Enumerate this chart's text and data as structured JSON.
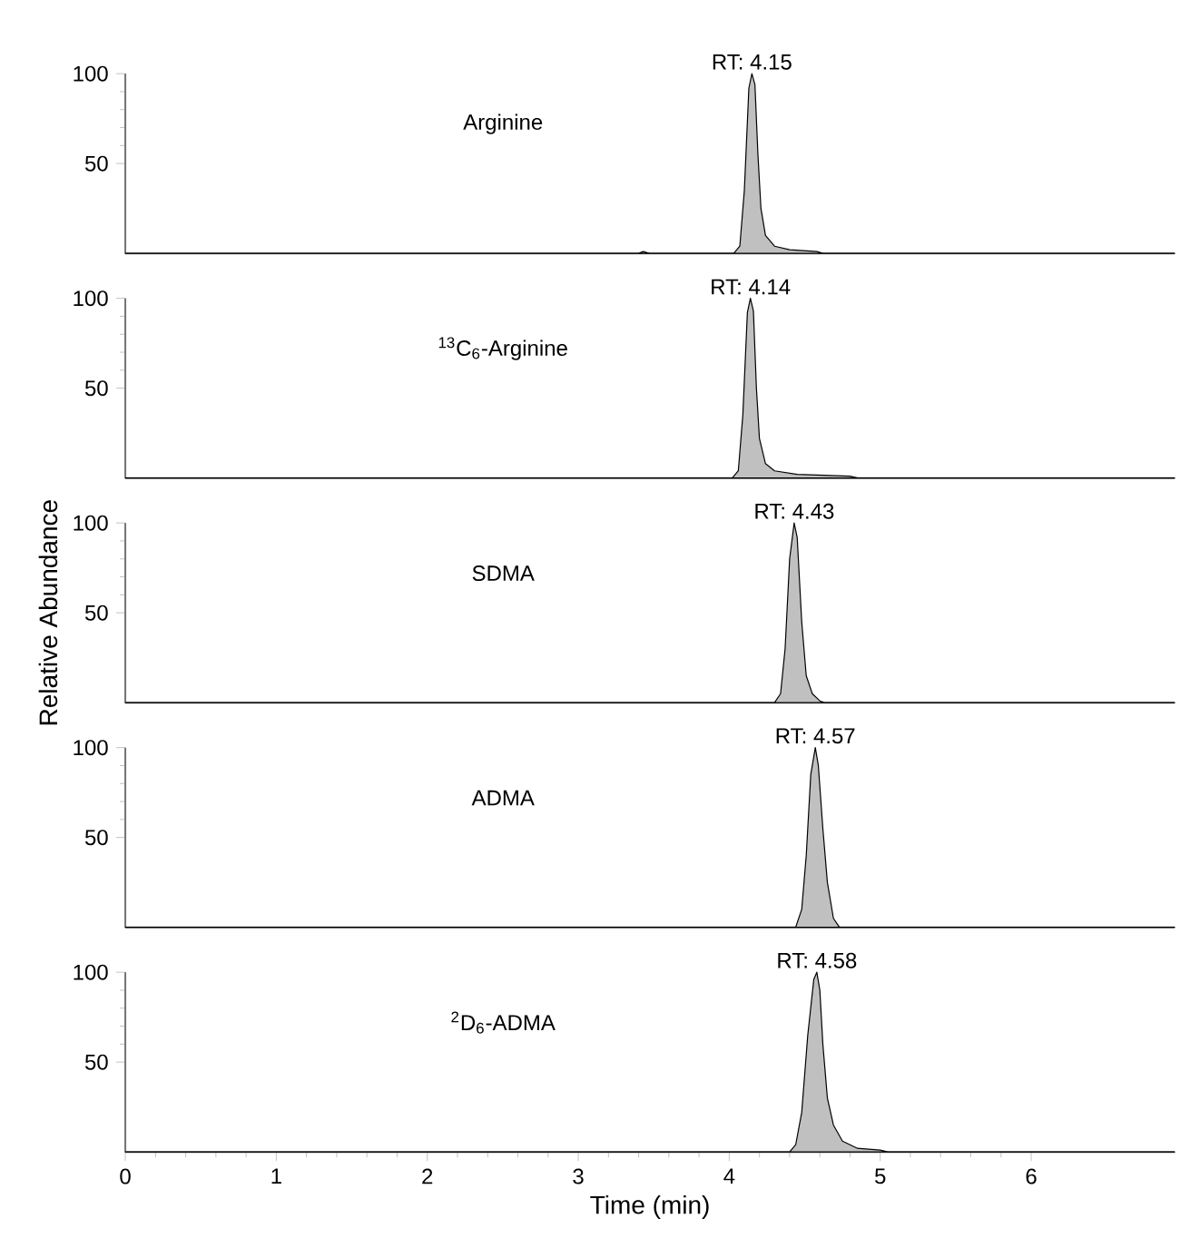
{
  "chart_data": [
    {
      "type": "area",
      "xlim": [
        0,
        6.95
      ],
      "ylim": [
        0,
        100
      ],
      "yticks": [
        50,
        100
      ],
      "tick_labels": "y",
      "annotations": [
        "Arginine",
        {
          "text": "RT: 4.15",
          "x": 4.15,
          "y": 100
        }
      ],
      "series": [
        {
          "color": "#c0c0c0",
          "x": [
            0,
            3.4,
            3.43,
            3.47,
            4.03,
            4.07,
            4.1,
            4.13,
            4.15,
            4.17,
            4.19,
            4.21,
            4.24,
            4.3,
            4.4,
            4.58,
            4.62,
            6.95
          ],
          "values": [
            0,
            0,
            1,
            0,
            0,
            4,
            35,
            92,
            100,
            94,
            55,
            25,
            10,
            4,
            2,
            1,
            0,
            0
          ]
        }
      ]
    },
    {
      "type": "area",
      "xlim": [
        0,
        6.95
      ],
      "ylim": [
        0,
        100
      ],
      "yticks": [
        50,
        100
      ],
      "tick_labels": "y",
      "annotations": [
        "$^{13}$C$_{6}$-Arginine",
        {
          "text": "RT: 4.14",
          "x": 4.14,
          "y": 100
        }
      ],
      "series": [
        {
          "color": "#c0c0c0",
          "x": [
            0,
            4.02,
            4.06,
            4.09,
            4.12,
            4.14,
            4.16,
            4.18,
            4.2,
            4.24,
            4.3,
            4.45,
            4.8,
            4.85,
            6.95
          ],
          "values": [
            0,
            0,
            4,
            35,
            92,
            100,
            93,
            50,
            22,
            8,
            4,
            2,
            1,
            0,
            0
          ]
        }
      ]
    },
    {
      "type": "area",
      "xlim": [
        0,
        6.95
      ],
      "ylim": [
        0,
        100
      ],
      "yticks": [
        50,
        100
      ],
      "tick_labels": "y",
      "ylabel": "Relative Abundance",
      "annotations": [
        "SDMA",
        {
          "text": "RT: 4.43",
          "x": 4.43,
          "y": 100
        }
      ],
      "series": [
        {
          "color": "#c0c0c0",
          "x": [
            0,
            4.3,
            4.34,
            4.37,
            4.4,
            4.43,
            4.45,
            4.48,
            4.51,
            4.55,
            4.6,
            4.63,
            6.95
          ],
          "values": [
            0,
            0,
            5,
            30,
            80,
            100,
            92,
            45,
            15,
            5,
            1,
            0,
            0
          ]
        }
      ]
    },
    {
      "type": "area",
      "xlim": [
        0,
        6.95
      ],
      "ylim": [
        0,
        100
      ],
      "yticks": [
        50,
        100
      ],
      "tick_labels": "y",
      "annotations": [
        "ADMA",
        {
          "text": "RT: 4.57",
          "x": 4.57,
          "y": 100
        }
      ],
      "series": [
        {
          "color": "#c0c0c0",
          "x": [
            0,
            4.44,
            4.48,
            4.51,
            4.54,
            4.57,
            4.59,
            4.62,
            4.65,
            4.69,
            4.73,
            6.95
          ],
          "values": [
            0,
            0,
            10,
            40,
            85,
            100,
            90,
            55,
            25,
            5,
            0,
            0
          ]
        }
      ]
    },
    {
      "type": "area",
      "xlim": [
        0,
        6.95
      ],
      "ylim": [
        0,
        100
      ],
      "xticks": [
        0,
        1,
        2,
        3,
        4,
        5,
        6
      ],
      "yticks": [
        50,
        100
      ],
      "xlabel": "Time (min)",
      "annotations": [
        "$^{2}$D$_{6}$-ADMA",
        {
          "text": "RT: 4.58",
          "x": 4.58,
          "y": 100
        }
      ],
      "series": [
        {
          "color": "#c0c0c0",
          "x": [
            0,
            4.4,
            4.44,
            4.48,
            4.52,
            4.56,
            4.58,
            4.6,
            4.62,
            4.65,
            4.69,
            4.75,
            4.85,
            5.0,
            5.05,
            6.95
          ],
          "values": [
            0,
            0,
            4,
            22,
            65,
            96,
            100,
            90,
            60,
            30,
            15,
            6,
            2,
            1,
            0,
            0
          ]
        }
      ]
    }
  ]
}
